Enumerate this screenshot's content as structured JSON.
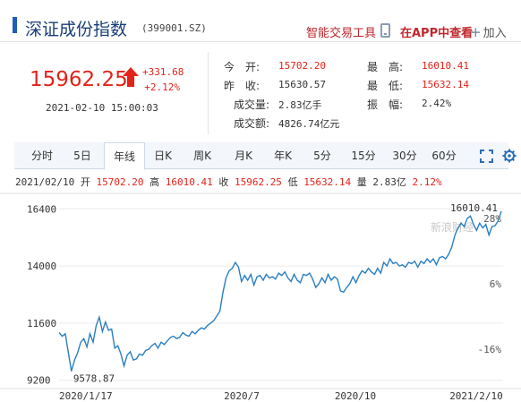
{
  "header": {
    "title": "深证成份指数",
    "code": "(399001.SZ)",
    "smart_trade": "智能交易工具",
    "open_in_app": "在APP中查看",
    "add": "加入",
    "accent_color": "#1f5eb7",
    "link_color": "#c0272d"
  },
  "quote": {
    "price": "15962.25",
    "change": "+331.68",
    "change_pct": "+2.12%",
    "datetime": "2021-02-10 15:00:03",
    "up_color": "#e2231a",
    "direction_icon": "up-arrow-icon"
  },
  "stats": {
    "open_label": "今　开:",
    "open": "15702.20",
    "prev_close_label": "昨　收:",
    "prev_close": "15630.57",
    "volume_label": "成交量:",
    "volume": "2.83亿手",
    "amount_label": "成交额:",
    "amount": "4826.74亿元",
    "high_label": "最　高:",
    "high": "16010.41",
    "low_label": "最　低:",
    "low": "15632.14",
    "amplitude_label": "振　幅:",
    "amplitude": "2.42%"
  },
  "tabs": [
    {
      "label": "分时"
    },
    {
      "label": "5日"
    },
    {
      "label": "年线",
      "active": true
    },
    {
      "label": "日K"
    },
    {
      "label": "周K"
    },
    {
      "label": "月K"
    },
    {
      "label": "年K"
    },
    {
      "label": "5分"
    },
    {
      "label": "15分"
    },
    {
      "label": "30分"
    },
    {
      "label": "60分"
    }
  ],
  "summary": {
    "date": "2021/02/10",
    "open_label": "开",
    "open": "15702.20",
    "high_label": "高",
    "high": "16010.41",
    "close_label": "收",
    "close": "15962.25",
    "low_label": "低",
    "low": "15632.14",
    "volume_label": "量",
    "volume": "2.83亿",
    "pct": "2.12%"
  },
  "chart_data": {
    "type": "line",
    "watermark": "新浪财经",
    "line_color": "#2a7fc1",
    "y_ticks": [
      "16400",
      "14000",
      "11600",
      "9200"
    ],
    "y_tick_values": [
      16400,
      14000,
      11600,
      9200
    ],
    "pct_ticks": [
      "28%",
      "6%",
      "-16%"
    ],
    "pct_tick_values": [
      28,
      6,
      -16
    ],
    "x_labels": [
      "2020/1/17",
      "2020/7",
      "2020/10",
      "2021/2/10"
    ],
    "ylim": [
      9000,
      16900
    ],
    "max_label": "16010.41",
    "min_label": "9578.87",
    "series": [
      {
        "values": [
          11200,
          11050,
          11150,
          10350,
          9580,
          10050,
          10350,
          10800,
          10950,
          10600,
          11150,
          10800,
          11500,
          11850,
          11250,
          11650,
          11300,
          11350,
          10550,
          10650,
          10300,
          9800,
          10250,
          10400,
          10050,
          10100,
          10300,
          10250,
          10450,
          10500,
          10650,
          10750,
          10550,
          10800,
          10700,
          10850,
          11000,
          11050,
          10950,
          11000,
          11200,
          11100,
          11050,
          11250,
          11150,
          11300,
          11400,
          11350,
          11500,
          11600,
          11700,
          11900,
          12100,
          12900,
          13500,
          13800,
          13900,
          14150,
          13950,
          13350,
          13600,
          13400,
          13650,
          13200,
          13550,
          13600,
          13400,
          13650,
          13500,
          13550,
          13450,
          13700,
          13600,
          13750,
          13500,
          13350,
          13650,
          13400,
          13300,
          13650,
          13600,
          13700,
          13450,
          13100,
          13250,
          13500,
          13300,
          13650,
          13400,
          13550,
          13450,
          12950,
          12900,
          13100,
          13250,
          13550,
          13300,
          13600,
          13800,
          13700,
          13900,
          13750,
          13650,
          13900,
          13700,
          14150,
          14000,
          14300,
          14100,
          14150,
          14000,
          14050,
          13950,
          14150,
          14100,
          14200,
          13950,
          14200,
          14100,
          14300,
          14150,
          14300,
          14050,
          14350,
          14400,
          14300,
          14500,
          14800,
          15300,
          15600,
          15800,
          15650,
          16000,
          16100,
          15750,
          15500,
          15800,
          15600,
          15750,
          15300,
          15650,
          15700,
          15900,
          16300
        ]
      }
    ]
  }
}
